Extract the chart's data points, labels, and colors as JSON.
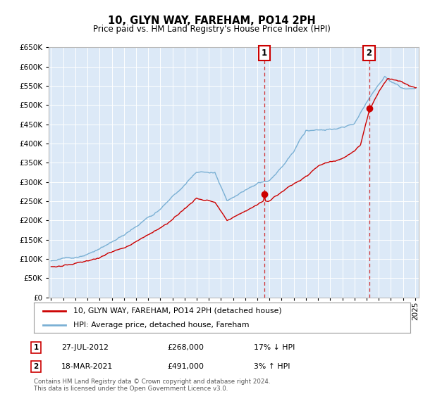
{
  "title": "10, GLYN WAY, FAREHAM, PO14 2PH",
  "subtitle": "Price paid vs. HM Land Registry's House Price Index (HPI)",
  "ylim": [
    0,
    650000
  ],
  "yticks": [
    0,
    50000,
    100000,
    150000,
    200000,
    250000,
    300000,
    350000,
    400000,
    450000,
    500000,
    550000,
    600000,
    650000
  ],
  "xlim_start": 1994.8,
  "xlim_end": 2025.3,
  "plot_bg_color": "#dce9f7",
  "fig_bg_color": "#ffffff",
  "legend_label_red": "10, GLYN WAY, FAREHAM, PO14 2PH (detached house)",
  "legend_label_blue": "HPI: Average price, detached house, Fareham",
  "point1_x": 2012.57,
  "point1_y": 268000,
  "point1_label": "27-JUL-2012",
  "point1_price": "£268,000",
  "point1_hpi": "17% ↓ HPI",
  "point2_x": 2021.21,
  "point2_y": 491000,
  "point2_label": "18-MAR-2021",
  "point2_price": "£491,000",
  "point2_hpi": "3% ↑ HPI",
  "footer": "Contains HM Land Registry data © Crown copyright and database right 2024.\nThis data is licensed under the Open Government Licence v3.0.",
  "red_color": "#cc0000",
  "blue_color": "#7ab0d4",
  "grid_color": "#ffffff"
}
